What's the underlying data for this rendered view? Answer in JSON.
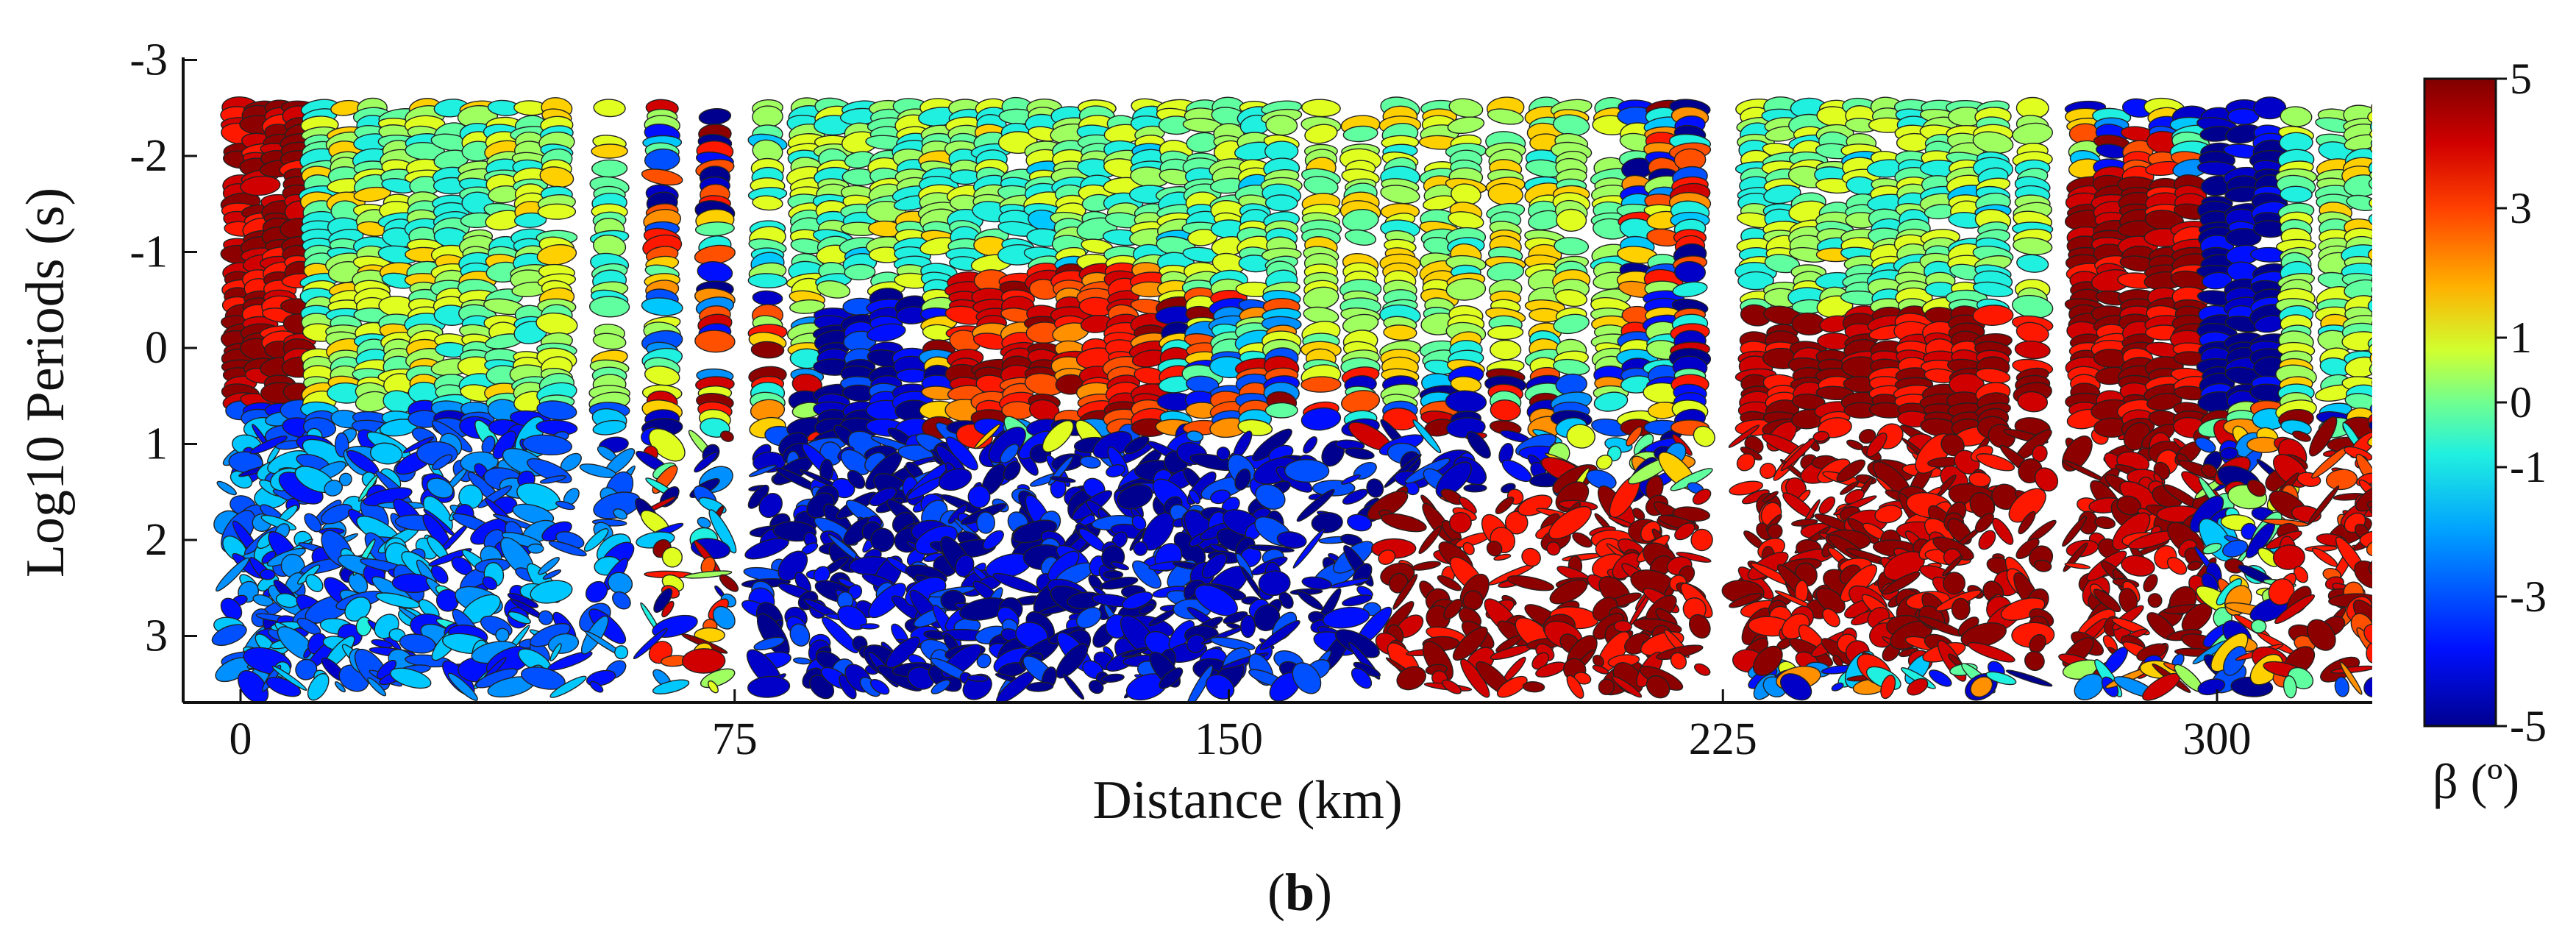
{
  "panel_label": {
    "open": "(",
    "letter": "b",
    "close": ")"
  },
  "chart_data": {
    "type": "scatter",
    "subtype": "phase-tensor ellipse pseudosection",
    "title": "",
    "xlabel": "Distance (km)",
    "ylabel": "Log10 Periods (s)",
    "xlim": [
      -12,
      358
    ],
    "ylim": [
      -3,
      3.8
    ],
    "y_inverted": true,
    "grid": false,
    "x_ticks": [
      0,
      75,
      150,
      225,
      300
    ],
    "y_ticks": [
      -3,
      -2,
      -1,
      0,
      1,
      2,
      3
    ],
    "colorbar": {
      "label": "β (º)",
      "range": [
        -5,
        5
      ],
      "ticks": [
        5,
        3,
        1,
        0,
        -1,
        -3,
        -5
      ],
      "colors": [
        "#00008f",
        "#0000c8",
        "#0010ff",
        "#0050ff",
        "#0090ff",
        "#00c8ff",
        "#20f0e0",
        "#60ffa0",
        "#a0ff60",
        "#e0ff20",
        "#ffd000",
        "#ff9000",
        "#ff5000",
        "#ff1800",
        "#d00000",
        "#8c0000"
      ]
    },
    "stations_km": [
      0,
      3,
      6,
      9,
      12,
      16,
      20,
      24,
      28,
      32,
      36,
      40,
      44,
      48,
      56,
      64,
      72,
      80,
      86,
      90,
      94,
      98,
      102,
      106,
      110,
      114,
      118,
      122,
      126,
      130,
      134,
      138,
      142,
      146,
      150,
      154,
      158,
      164,
      170,
      176,
      182,
      186,
      192,
      198,
      202,
      208,
      212,
      216,
      220,
      230,
      234,
      238,
      242,
      246,
      250,
      254,
      258,
      262,
      266,
      272,
      280,
      284,
      288,
      292,
      296,
      300,
      304,
      308,
      312,
      318,
      322,
      326,
      330,
      336,
      340,
      346
    ],
    "beta_by_segment": [
      {
        "x_range": [
          0,
          12
        ],
        "y_range": [
          -2.6,
          0.6
        ],
        "beta": 4.5
      },
      {
        "x_range": [
          12,
          60
        ],
        "y_range": [
          -2.6,
          0.6
        ],
        "beta": 0.2
      },
      {
        "x_range": [
          0,
          60
        ],
        "y_range": [
          0.6,
          3.6
        ],
        "beta": -2.5
      },
      {
        "x_range": [
          80,
          160
        ],
        "y_range": [
          -2.6,
          -0.6
        ],
        "beta": 0.0
      },
      {
        "x_range": [
          88,
          104
        ],
        "y_range": [
          -0.6,
          1.0
        ],
        "beta": -4.0
      },
      {
        "x_range": [
          110,
          140
        ],
        "y_range": [
          -0.8,
          0.8
        ],
        "beta": 3.5
      },
      {
        "x_range": [
          80,
          200
        ],
        "y_range": [
          1.0,
          3.6
        ],
        "beta": -4.0
      },
      {
        "x_range": [
          164,
          210
        ],
        "y_range": [
          -2.6,
          0.2
        ],
        "beta": 0.5
      },
      {
        "x_range": [
          176,
          220
        ],
        "y_range": [
          1.5,
          3.6
        ],
        "beta": 4.5
      },
      {
        "x_range": [
          230,
          272
        ],
        "y_range": [
          -2.6,
          -0.4
        ],
        "beta": 0.0
      },
      {
        "x_range": [
          230,
          272
        ],
        "y_range": [
          -0.4,
          3.3
        ],
        "beta": 4.5
      },
      {
        "x_range": [
          280,
          298
        ],
        "y_range": [
          -1.8,
          3.2
        ],
        "beta": 4.5
      },
      {
        "x_range": [
          298,
          312
        ],
        "y_range": [
          -2.6,
          0.6
        ],
        "beta": -4.5
      },
      {
        "x_range": [
          312,
          346
        ],
        "y_range": [
          -2.6,
          0.6
        ],
        "beta": 0.3
      },
      {
        "x_range": [
          312,
          346
        ],
        "y_range": [
          1.0,
          3.4
        ],
        "beta": 4.0
      }
    ]
  }
}
